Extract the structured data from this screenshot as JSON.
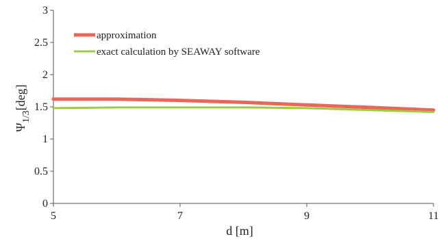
{
  "chart_data": {
    "type": "line",
    "title": "",
    "xlabel": "d [m]",
    "ylabel": {
      "main": "Ψ",
      "subscript": "1/3",
      "suffix": "[deg]"
    },
    "xlim": [
      5,
      11
    ],
    "ylim": [
      0,
      3
    ],
    "x_ticks": [
      "5",
      "7",
      "9",
      "11"
    ],
    "y_ticks": [
      "0",
      "0.5",
      "1",
      "1.5",
      "2",
      "2.5",
      "3"
    ],
    "grid": false,
    "legend_position": "top-left",
    "series": [
      {
        "name": "approximation",
        "color": "#e8675a",
        "x": [
          5,
          6,
          7,
          8,
          9,
          10,
          11
        ],
        "y": [
          1.62,
          1.62,
          1.6,
          1.57,
          1.53,
          1.49,
          1.45
        ]
      },
      {
        "name": "exact calculation by SEAWAY software",
        "color": "#9ccc3c",
        "x": [
          5,
          6,
          7,
          8,
          9,
          10,
          11
        ],
        "y": [
          1.48,
          1.49,
          1.49,
          1.49,
          1.48,
          1.45,
          1.42
        ]
      }
    ]
  }
}
